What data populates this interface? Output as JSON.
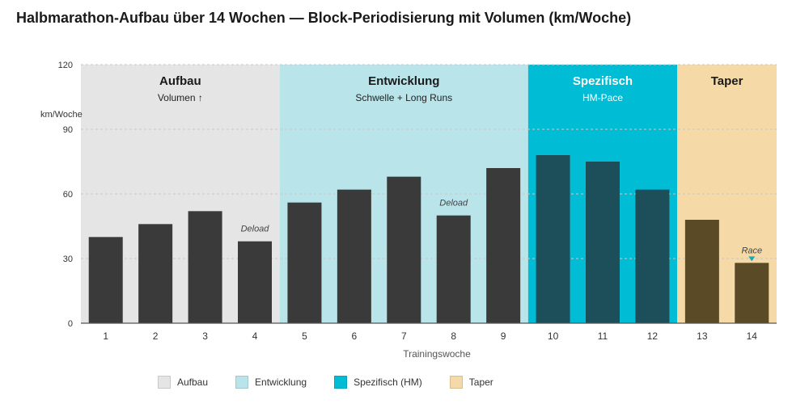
{
  "chart_data": {
    "type": "bar",
    "title": "Halbmarathon-Aufbau über 14 Wochen — Block-Periodisierung mit Volumen (km/Woche)",
    "xlabel": "Trainingswoche",
    "ylabel": "km/Woche",
    "ylim": [
      0,
      120
    ],
    "yticks": [
      "0",
      "30",
      "60",
      "90",
      "120"
    ],
    "grid": true,
    "categories": [
      "1",
      "2",
      "3",
      "4",
      "5",
      "6",
      "7",
      "8",
      "9",
      "10",
      "11",
      "12",
      "13",
      "14"
    ],
    "values": [
      40,
      46,
      52,
      38,
      56,
      62,
      68,
      50,
      72,
      78,
      75,
      62,
      48,
      28
    ],
    "phases": [
      {
        "name": "Aufbau",
        "subtitle": "Volumen ↑",
        "start_week": 1,
        "end_week": 4,
        "color": "#e5e5e5",
        "bar_color": "#3a3a3a",
        "title_color": "#1a1a1a",
        "sub_color": "#222222"
      },
      {
        "name": "Entwicklung",
        "subtitle": "Schwelle + Long Runs",
        "start_week": 5,
        "end_week": 9,
        "color": "#b8e4ea",
        "bar_color": "#3a3a3a",
        "title_color": "#1a1a1a",
        "sub_color": "#222222"
      },
      {
        "name": "Spezifisch",
        "subtitle": "HM-Pace",
        "start_week": 10,
        "end_week": 12,
        "color": "#00bcd4",
        "bar_color": "#1c4f5a",
        "title_color": "#ffffff",
        "sub_color": "#ffffff"
      },
      {
        "name": "Taper",
        "subtitle": "",
        "start_week": 13,
        "end_week": 14,
        "color": "#f5d9a6",
        "bar_color": "#5a4a26",
        "title_color": "#1a1a1a",
        "sub_color": "#222222"
      }
    ],
    "annotations": [
      {
        "week": 4,
        "text": "Deload"
      },
      {
        "week": 8,
        "text": "Deload"
      },
      {
        "week": 14,
        "text": "Race",
        "marker": true,
        "marker_color": "#1aa7b8"
      }
    ],
    "legend": [
      {
        "label": "Aufbau",
        "color": "#e5e5e5"
      },
      {
        "label": "Entwicklung",
        "color": "#b8e4ea"
      },
      {
        "label": "Spezifisch (HM)",
        "color": "#00bcd4"
      },
      {
        "label": "Taper",
        "color": "#f5d9a6"
      }
    ],
    "legend_position": "bottom"
  }
}
